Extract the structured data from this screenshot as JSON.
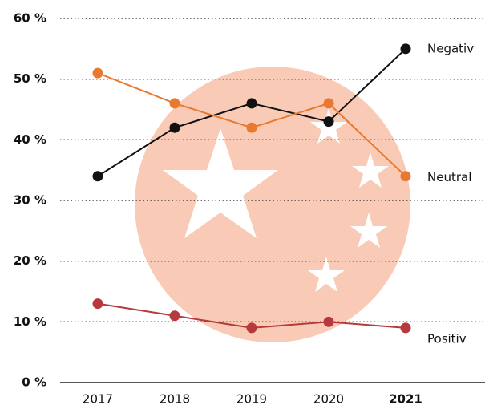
{
  "chart_data": {
    "type": "line",
    "categories": [
      "2017",
      "2018",
      "2019",
      "2020",
      "2021"
    ],
    "series": [
      {
        "name": "Negativ",
        "color": "#111111",
        "values": [
          34,
          42,
          46,
          43,
          55
        ]
      },
      {
        "name": "Neutral",
        "color": "#e8792f",
        "values": [
          51,
          46,
          42,
          46,
          34
        ]
      },
      {
        "name": "Positiv",
        "color": "#b5393d",
        "values": [
          13,
          11,
          9,
          10,
          9
        ]
      }
    ],
    "ylim": [
      0,
      60
    ],
    "yticks": [
      {
        "value": 0,
        "label": "0 %"
      },
      {
        "value": 10,
        "label": "10 %"
      },
      {
        "value": 20,
        "label": "20 %"
      },
      {
        "value": 30,
        "label": "30 %"
      },
      {
        "value": 40,
        "label": "40 %"
      },
      {
        "value": 50,
        "label": "50 %"
      },
      {
        "value": 60,
        "label": "60 %"
      }
    ],
    "grid": true
  }
}
